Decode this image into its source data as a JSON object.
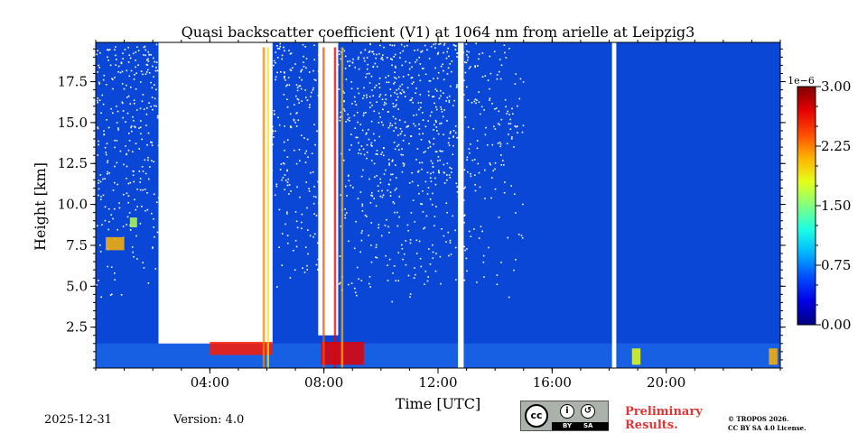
{
  "chart_data": {
    "type": "heatmap",
    "title": "Quasi backscatter coefficient (V1) at 1064 nm from arielle at Leipzig3",
    "xlabel": "Time [UTC]",
    "ylabel": "Height [km]",
    "xlim_hours": [
      0,
      24
    ],
    "ylim_km": [
      0,
      19.9
    ],
    "x_ticks": [
      {
        "hour": 4,
        "label": "04:00"
      },
      {
        "hour": 8,
        "label": "08:00"
      },
      {
        "hour": 12,
        "label": "12:00"
      },
      {
        "hour": 16,
        "label": "16:00"
      },
      {
        "hour": 20,
        "label": "20:00"
      }
    ],
    "y_ticks": [
      {
        "km": 2.5,
        "label": "2.5"
      },
      {
        "km": 5.0,
        "label": "5.0"
      },
      {
        "km": 7.5,
        "label": "7.5"
      },
      {
        "km": 10.0,
        "label": "10.0"
      },
      {
        "km": 12.5,
        "label": "12.5"
      },
      {
        "km": 15.0,
        "label": "15.0"
      },
      {
        "km": 17.5,
        "label": "17.5"
      }
    ],
    "colorbar": {
      "scale_label": "1e−6",
      "range": [
        0,
        3.0
      ],
      "ticks": [
        {
          "value": 0.0,
          "label": "0.00"
        },
        {
          "value": 0.75,
          "label": "0.75"
        },
        {
          "value": 1.5,
          "label": "1.50"
        },
        {
          "value": 2.25,
          "label": "2.25"
        },
        {
          "value": 3.0,
          "label": "3.00"
        }
      ],
      "colormap": "jet"
    },
    "data_gaps_hours": [
      [
        12.7,
        12.9
      ],
      [
        18.1,
        18.25
      ]
    ],
    "cloud_masks": [
      {
        "t0": 2.2,
        "t1": 6.2,
        "h0": 1.5,
        "h1": 19.9
      },
      {
        "t0": 7.8,
        "t1": 8.5,
        "h0": 2.0,
        "h1": 19.9
      }
    ],
    "noise_region_hours": [
      0.0,
      15.0
    ],
    "aerosol_layer_km": [
      0.0,
      1.5
    ]
  },
  "footer": {
    "date": "2025-12-31",
    "version": "Version: 4.0",
    "preliminary": [
      "Preliminary",
      "Results."
    ],
    "copyright": [
      "© TROPOS 2026.",
      "CC BY SA 4.0 License."
    ],
    "license_badge": {
      "cc": "cc",
      "by": "BY",
      "sa": "SA"
    }
  }
}
